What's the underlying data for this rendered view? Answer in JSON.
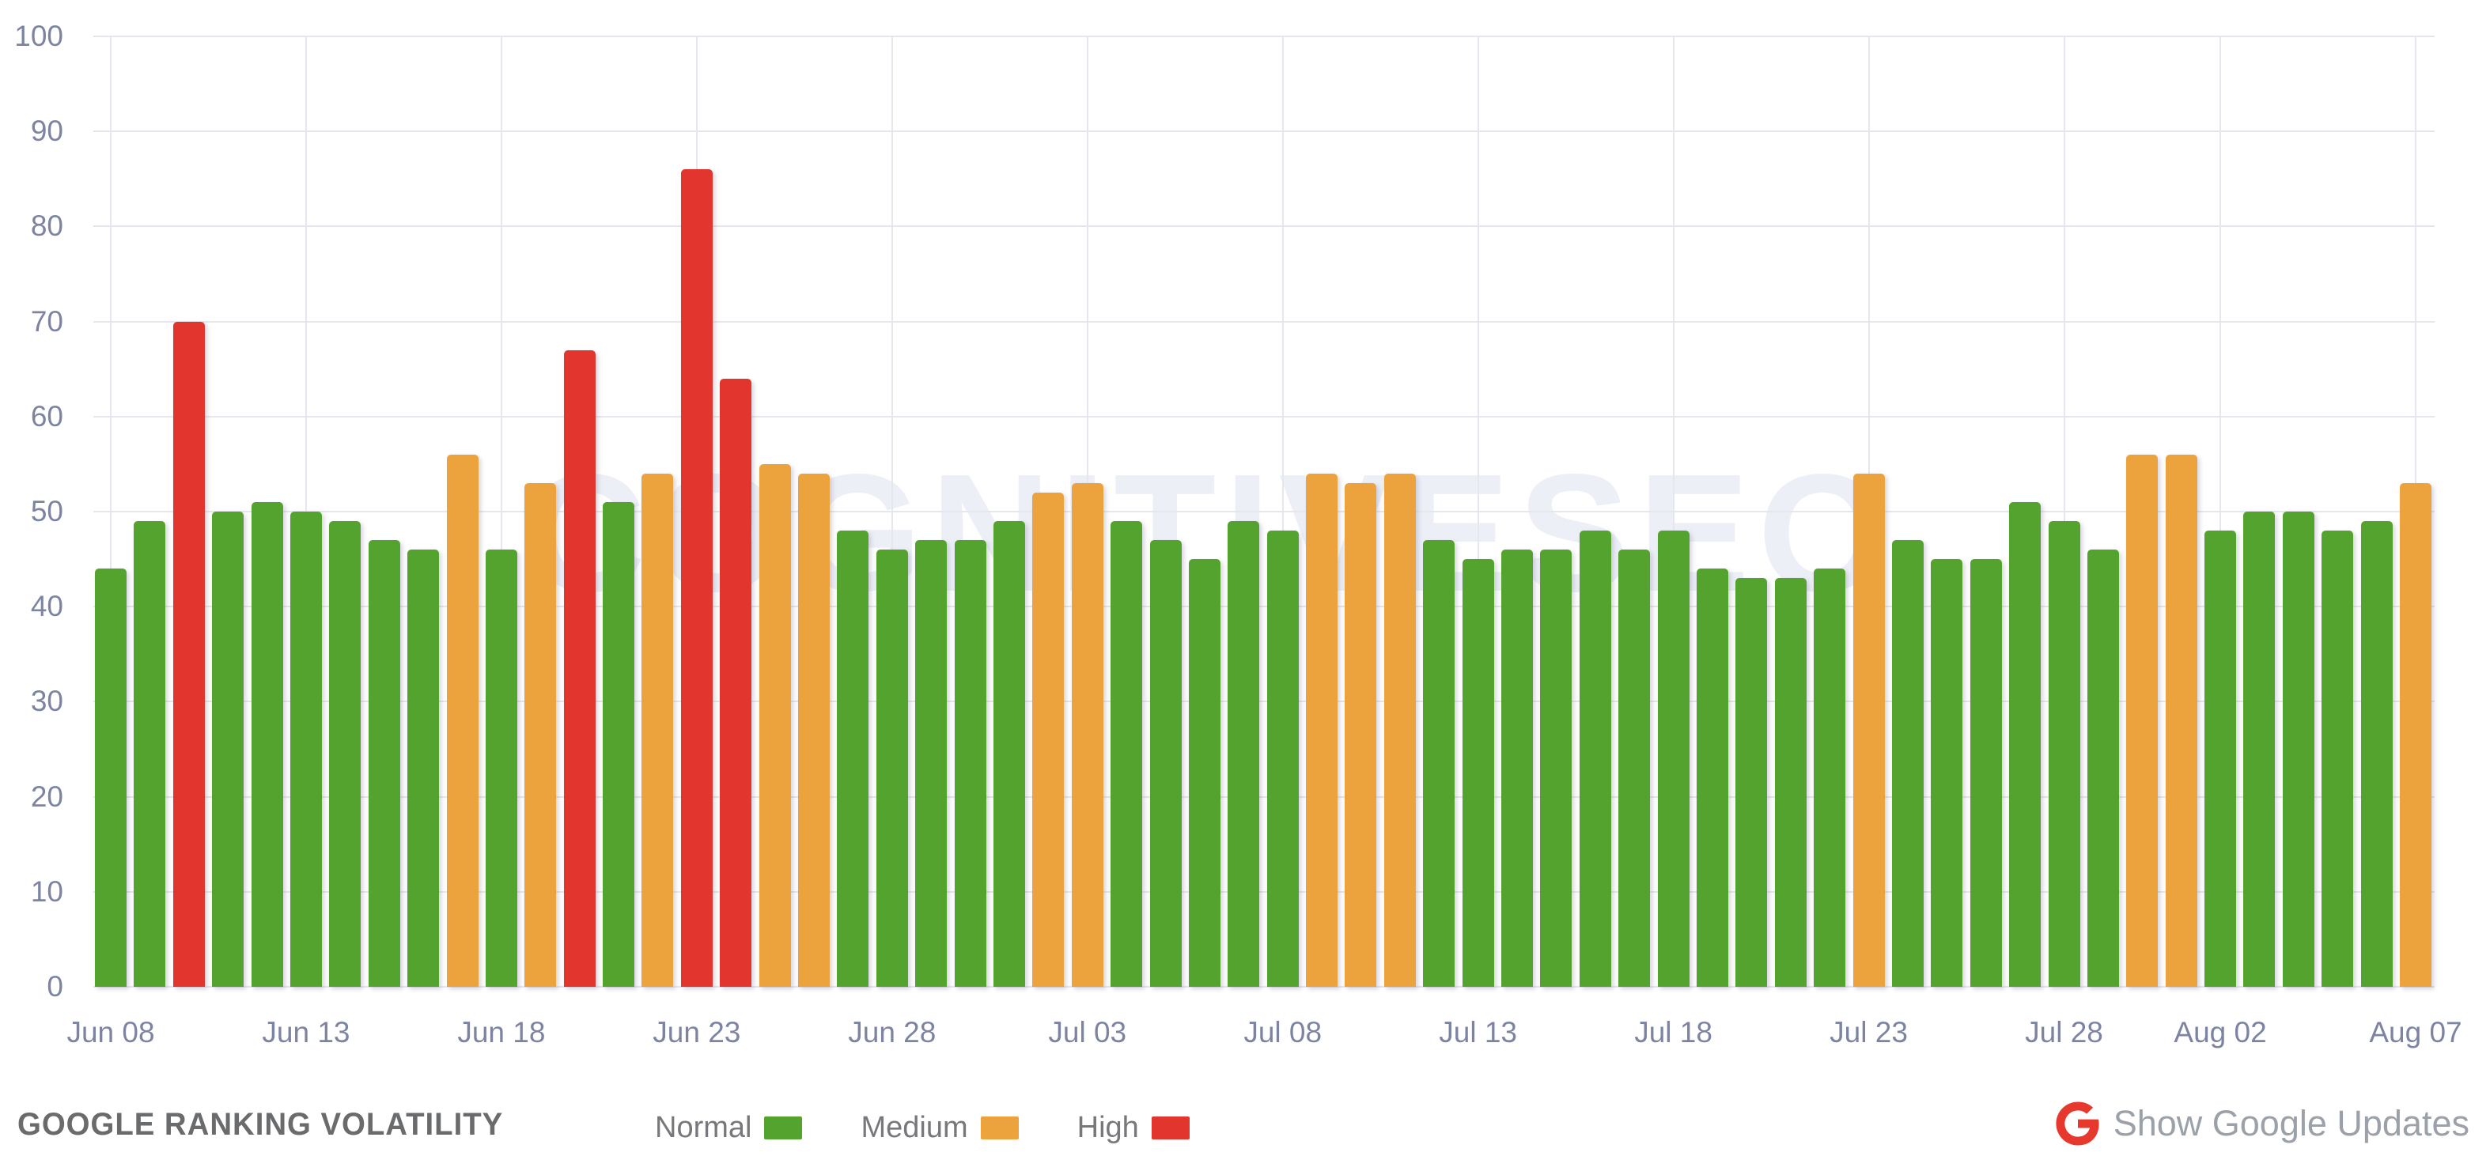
{
  "chart_data": {
    "type": "bar",
    "title": "GOOGLE RANKING VOLATILITY",
    "xlabel": "",
    "ylabel": "",
    "ylim": [
      0,
      100
    ],
    "y_ticks": [
      0,
      10,
      20,
      30,
      40,
      50,
      60,
      70,
      80,
      90,
      100
    ],
    "grid": true,
    "legend_position": "bottom",
    "categories": [
      "Jun 08",
      "Jun 09",
      "Jun 10",
      "Jun 11",
      "Jun 12",
      "Jun 13",
      "Jun 14",
      "Jun 15",
      "Jun 16",
      "Jun 17",
      "Jun 18",
      "Jun 19",
      "Jun 20",
      "Jun 21",
      "Jun 22",
      "Jun 23",
      "Jun 24",
      "Jun 25",
      "Jun 26",
      "Jun 27",
      "Jun 28",
      "Jun 29",
      "Jun 30",
      "Jul 01",
      "Jul 02",
      "Jul 03",
      "Jul 04",
      "Jul 05",
      "Jul 06",
      "Jul 07",
      "Jul 08",
      "Jul 09",
      "Jul 10",
      "Jul 11",
      "Jul 12",
      "Jul 13",
      "Jul 14",
      "Jul 15",
      "Jul 16",
      "Jul 17",
      "Jul 18",
      "Jul 19",
      "Jul 20",
      "Jul 21",
      "Jul 22",
      "Jul 23",
      "Jul 24",
      "Jul 25",
      "Jul 26",
      "Jul 27",
      "Jul 28",
      "Jul 30",
      "Jul 31",
      "Aug 01",
      "Aug 02",
      "Aug 03",
      "Aug 04",
      "Aug 05",
      "Aug 06",
      "Aug 07"
    ],
    "values": [
      44,
      49,
      70,
      50,
      51,
      50,
      49,
      47,
      46,
      56,
      46,
      53,
      67,
      51,
      54,
      86,
      64,
      55,
      54,
      48,
      46,
      47,
      47,
      49,
      52,
      53,
      49,
      47,
      45,
      49,
      48,
      54,
      53,
      54,
      47,
      45,
      46,
      46,
      48,
      46,
      48,
      44,
      43,
      43,
      44,
      54,
      47,
      45,
      45,
      51,
      49,
      46,
      56,
      56,
      48,
      50,
      50,
      48,
      49,
      53
    ],
    "status_thresholds": {
      "medium_min": 52,
      "high_min": 60
    },
    "x_tick_indices": [
      0,
      5,
      10,
      15,
      20,
      25,
      30,
      35,
      40,
      45,
      50,
      54,
      59
    ],
    "x_tick_labels": [
      "Jun 08",
      "Jun 13",
      "Jun 18",
      "Jun 23",
      "Jun 28",
      "Jul 03",
      "Jul 08",
      "Jul 13",
      "Jul 18",
      "Jul 23",
      "Jul 28",
      "Aug 02",
      "Aug 07"
    ]
  },
  "colors": {
    "normal": "#55a32f",
    "medium": "#eca33d",
    "high": "#e1352d",
    "axis_label": "#7c84a2",
    "gridline": "#e6e7ee",
    "google_red": "#e6382c"
  },
  "legend": {
    "items": [
      {
        "label": "Normal",
        "status": "normal",
        "color": "#55a32f"
      },
      {
        "label": "Medium",
        "status": "medium",
        "color": "#eca33d"
      },
      {
        "label": "High",
        "status": "high",
        "color": "#e1352d"
      }
    ]
  },
  "footer": {
    "title": "GOOGLE RANKING VOLATILITY",
    "google_updates_label": "Show Google Updates"
  },
  "watermark": "COGNITIVESEO"
}
